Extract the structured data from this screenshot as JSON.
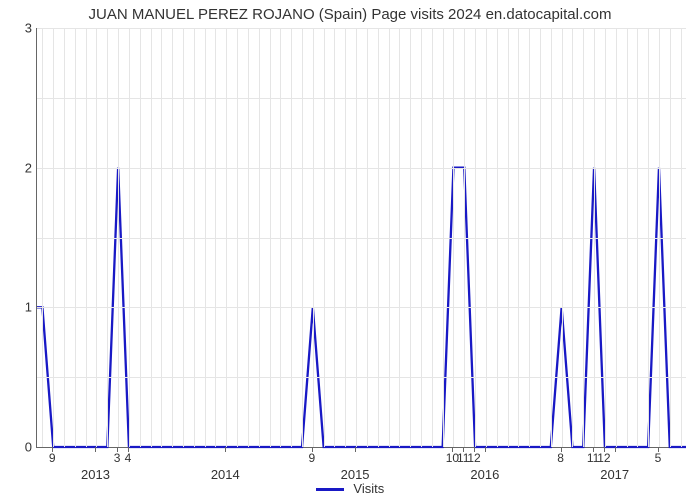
{
  "chart": {
    "type": "line",
    "title": "JUAN MANUEL PEREZ ROJANO (Spain) Page visits 2024 en.datocapital.com",
    "title_fontsize": 15,
    "title_color": "#333333",
    "background_color": "#ffffff",
    "plot_border_color": "#666666",
    "grid_color": "#e5e5e5",
    "line_color": "#1919c5",
    "line_width": 2.3,
    "legend": {
      "label": "Visits",
      "position": "bottom-center"
    },
    "y": {
      "lim": [
        0,
        3
      ],
      "ticks": [
        0,
        1,
        2,
        3
      ],
      "grid_lines": [
        0.5,
        1,
        1.5,
        2,
        2.5,
        3
      ]
    },
    "x": {
      "n_months": 60,
      "major_years": [
        {
          "label": "2013",
          "month_index": 5
        },
        {
          "label": "2014",
          "month_index": 17
        },
        {
          "label": "2015",
          "month_index": 29
        },
        {
          "label": "2016",
          "month_index": 41
        },
        {
          "label": "2017",
          "month_index": 53
        }
      ],
      "minor_ticks": [
        {
          "label": "9",
          "month_index": 1
        },
        {
          "label": "3",
          "month_index": 7
        },
        {
          "label": "4",
          "month_index": 8
        },
        {
          "label": "9",
          "month_index": 25
        },
        {
          "label": "10",
          "month_index": 38
        },
        {
          "label": "11",
          "month_index": 39
        },
        {
          "label": "12",
          "month_index": 40
        },
        {
          "label": "8",
          "month_index": 48
        },
        {
          "label": "11",
          "month_index": 51
        },
        {
          "label": "12",
          "month_index": 52
        },
        {
          "label": "5",
          "month_index": 57
        }
      ],
      "tick_marks": [
        1,
        5,
        7,
        8,
        17,
        25,
        29,
        38,
        39,
        40,
        41,
        48,
        51,
        52,
        53,
        57
      ]
    },
    "series": {
      "visits_by_month": [
        1,
        0,
        0,
        0,
        0,
        0,
        0,
        2,
        0,
        0,
        0,
        0,
        0,
        0,
        0,
        0,
        0,
        0,
        0,
        0,
        0,
        0,
        0,
        0,
        0,
        1,
        0,
        0,
        0,
        0,
        0,
        0,
        0,
        0,
        0,
        0,
        0,
        0,
        2,
        2,
        0,
        0,
        0,
        0,
        0,
        0,
        0,
        0,
        1,
        0,
        0,
        2,
        0,
        0,
        0,
        0,
        0,
        2,
        0,
        0
      ]
    }
  }
}
